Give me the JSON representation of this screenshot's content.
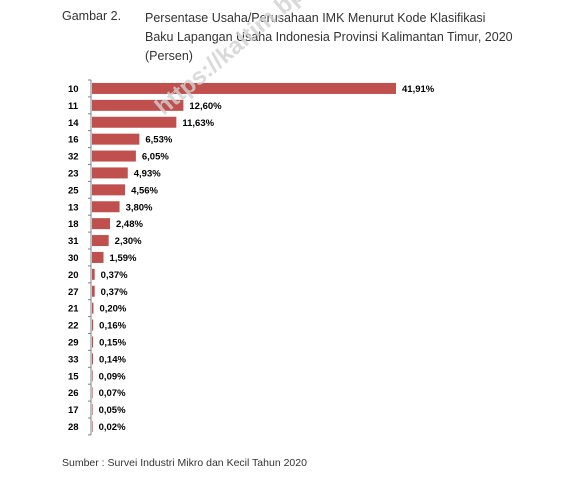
{
  "figure": {
    "label": "Gambar 2.",
    "title": "Persentase Usaha/Perusahaan IMK Menurut Kode Klasifikasi Baku Lapangan Usaha Indonesia Provinsi  Kalimantan Timur, 2020 (Persen)"
  },
  "watermark": "https://kaltim.bps.go.id",
  "source": "Sumber : Survei Industri Mikro dan Kecil Tahun 2020",
  "colors": {
    "bar": "#c0504d",
    "axis": "#808080",
    "text": "#000000"
  },
  "chart_data": {
    "type": "bar",
    "orientation": "horizontal",
    "title": "",
    "xlabel": "",
    "ylabel": "",
    "categories": [
      "10",
      "11",
      "14",
      "16",
      "32",
      "23",
      "25",
      "13",
      "18",
      "31",
      "30",
      "20",
      "27",
      "21",
      "22",
      "29",
      "33",
      "15",
      "26",
      "17",
      "28"
    ],
    "values": [
      41.91,
      12.6,
      11.63,
      6.53,
      6.05,
      4.93,
      4.56,
      3.8,
      2.48,
      2.3,
      1.59,
      0.37,
      0.37,
      0.2,
      0.16,
      0.15,
      0.14,
      0.09,
      0.07,
      0.05,
      0.02
    ],
    "data_labels": [
      "41,91%",
      "12,60%",
      "11,63%",
      "6,53%",
      "6,05%",
      "4,93%",
      "4,56%",
      "3,80%",
      "2,48%",
      "2,30%",
      "1,59%",
      "0,37%",
      "0,37%",
      "0,20%",
      "0,16%",
      "0,15%",
      "0,14%",
      "0,09%",
      "0,07%",
      "0,05%",
      "0,02%"
    ],
    "xlim": [
      0,
      48
    ],
    "grid": false,
    "legend": "none"
  }
}
